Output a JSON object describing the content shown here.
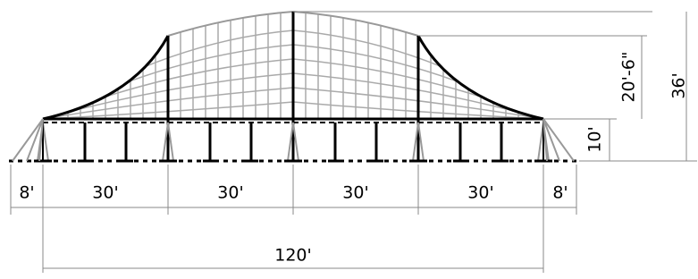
{
  "dimensions": {
    "spans": [
      "8'",
      "30'",
      "30'",
      "30'",
      "30'",
      "8'"
    ],
    "overall": "120'",
    "heights": [
      "10'",
      "20'-6\"",
      "36'"
    ]
  }
}
